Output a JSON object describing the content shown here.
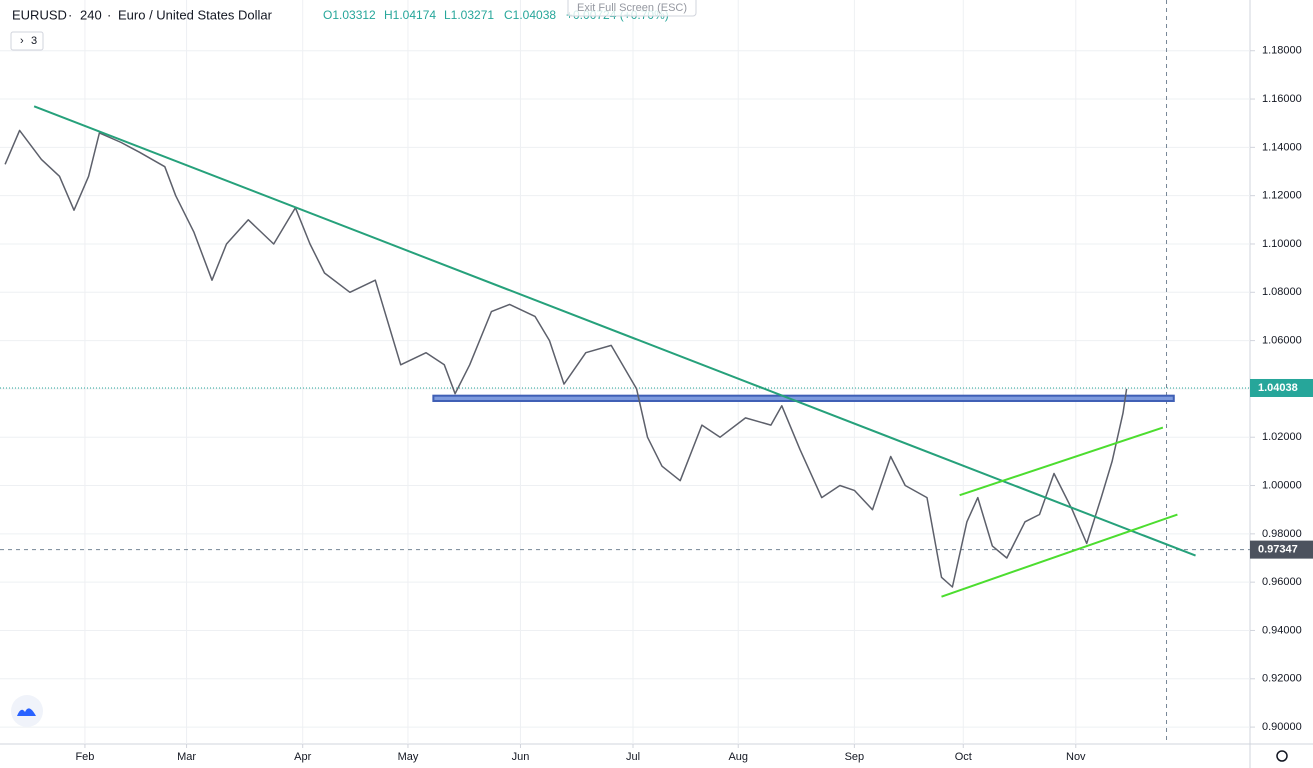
{
  "chart_data": {
    "type": "line",
    "symbol": "EURUSD",
    "interval": "240",
    "description": "Euro / United States Dollar",
    "ohlc": [
      {
        "value": 1.03312,
        "label": "O1.03312"
      },
      {
        "value": 1.04174,
        "label": "H1.04174"
      },
      {
        "value": 1.03271,
        "label": "L1.03271"
      },
      {
        "value": 1.04038,
        "label": "C1.04038"
      }
    ],
    "change": {
      "value": 0.00724,
      "label": "+0.00724 (+0.70%)"
    },
    "indicator_count": "3",
    "fullscreen_button": "Exit Full Screen (ESC)",
    "series": [
      {
        "name": "EURUSD",
        "color": "#5d606b",
        "x": [
          9,
          13,
          19,
          24,
          28,
          32,
          35,
          41,
          46,
          53,
          56,
          61,
          66,
          70,
          76,
          83,
          89,
          93,
          97,
          104,
          111,
          115,
          118,
          125,
          130,
          133,
          137,
          143,
          148,
          155,
          159,
          163,
          169,
          176,
          183,
          186,
          190,
          195,
          201,
          206,
          213,
          220,
          223,
          228,
          234,
          239,
          243,
          248,
          253,
          257,
          263,
          267,
          270,
          274,
          277,
          281,
          285,
          290,
          294,
          298,
          303,
          307,
          311,
          314,
          317,
          318
        ],
        "values": [
          1.133,
          1.147,
          1.135,
          1.128,
          1.114,
          1.128,
          1.146,
          1.142,
          1.138,
          1.132,
          1.12,
          1.105,
          1.085,
          1.1,
          1.11,
          1.1,
          1.115,
          1.1,
          1.088,
          1.08,
          1.085,
          1.065,
          1.05,
          1.055,
          1.05,
          1.038,
          1.05,
          1.072,
          1.075,
          1.07,
          1.06,
          1.042,
          1.055,
          1.058,
          1.04,
          1.02,
          1.008,
          1.002,
          1.025,
          1.02,
          1.028,
          1.025,
          1.033,
          1.015,
          0.995,
          1.0,
          0.998,
          0.99,
          1.012,
          1.0,
          0.995,
          0.962,
          0.958,
          0.985,
          0.995,
          0.975,
          0.97,
          0.985,
          0.988,
          1.005,
          0.99,
          0.976,
          0.995,
          1.01,
          1.03,
          1.04
        ]
      }
    ],
    "xlim": [
      7.6,
      352
    ],
    "xticks": [
      {
        "value": 31,
        "label": "Feb"
      },
      {
        "value": 59,
        "label": "Mar"
      },
      {
        "value": 91,
        "label": "Apr"
      },
      {
        "value": 120,
        "label": "May"
      },
      {
        "value": 151,
        "label": "Jun"
      },
      {
        "value": 182,
        "label": "Jul"
      },
      {
        "value": 211,
        "label": "Aug"
      },
      {
        "value": 243,
        "label": "Sep"
      },
      {
        "value": 273,
        "label": "Oct"
      },
      {
        "value": 304,
        "label": "Nov"
      }
    ],
    "ylim": [
      0.893,
      1.201
    ],
    "yticks": [
      {
        "value": 0.9,
        "label": "0.90000"
      },
      {
        "value": 0.92,
        "label": "0.92000"
      },
      {
        "value": 0.94,
        "label": "0.94000"
      },
      {
        "value": 0.96,
        "label": "0.96000"
      },
      {
        "value": 0.98,
        "label": "0.98000"
      },
      {
        "value": 1.0,
        "label": "1.00000"
      },
      {
        "value": 1.02,
        "label": "1.02000"
      },
      {
        "value": 1.04,
        "label": "1.04000"
      },
      {
        "value": 1.06,
        "label": "1.06000"
      },
      {
        "value": 1.08,
        "label": "1.08000"
      },
      {
        "value": 1.1,
        "label": "1.10000"
      },
      {
        "value": 1.12,
        "label": "1.12000"
      },
      {
        "value": 1.14,
        "label": "1.14000"
      },
      {
        "value": 1.16,
        "label": "1.16000"
      },
      {
        "value": 1.18,
        "label": "1.18000"
      }
    ],
    "grid": true,
    "trendlines": [
      {
        "x": [
          17,
          337
        ],
        "y": [
          1.157,
          0.971
        ],
        "color": "#26a17b"
      },
      {
        "x": [
          272,
          328
        ],
        "y": [
          0.996,
          1.024
        ],
        "color": "#4cdd2f"
      },
      {
        "x": [
          267,
          332
        ],
        "y": [
          0.954,
          0.988
        ],
        "color": "#4cdd2f"
      }
    ],
    "zone": {
      "x": [
        127,
        331
      ],
      "y": [
        1.035,
        1.0372
      ],
      "color": "#3f5fb5"
    },
    "last_price": {
      "value": 1.04038,
      "label": "1.04038",
      "color": "#26a69a"
    },
    "crosshair": {
      "x": 329,
      "y": {
        "value": 0.97347,
        "label": "0.97347"
      }
    }
  }
}
